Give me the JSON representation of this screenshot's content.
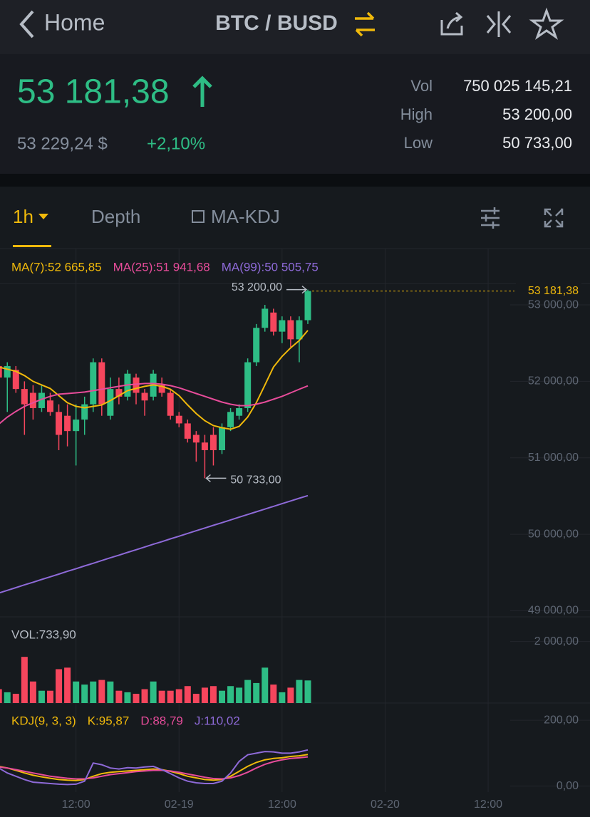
{
  "header": {
    "back": "Home",
    "pair": "BTC / BUSD"
  },
  "ticker": {
    "price": "53 181,38",
    "fiat": "53 229,24 $",
    "change": "+2,10%",
    "stats": [
      {
        "label": "Vol",
        "value": "750 025 145,21"
      },
      {
        "label": "High",
        "value": "53 200,00"
      },
      {
        "label": "Low",
        "value": "50 733,00"
      }
    ]
  },
  "tabs": [
    "1h",
    "Depth",
    "MA-KDJ"
  ],
  "chart_data": [
    {
      "type": "candlestick",
      "up_color": "#2ebd85",
      "down_color": "#f6465d",
      "open": [
        52300,
        52200,
        52050,
        52150,
        51900,
        51850,
        51650,
        51750,
        51600,
        51550,
        51350,
        51500,
        51700,
        52250,
        51550,
        51900,
        51800,
        52050,
        51850,
        51800,
        51950,
        51850,
        51550,
        51450,
        51300,
        51200,
        51300,
        51100,
        51400,
        51550,
        51650,
        52250,
        52700,
        52900,
        52650,
        52800,
        52550,
        52800
      ],
      "high": [
        52400,
        52300,
        52250,
        52200,
        52000,
        51950,
        51950,
        51850,
        51700,
        51700,
        51700,
        51800,
        52300,
        52300,
        52050,
        52050,
        52150,
        52100,
        51900,
        52150,
        52050,
        51900,
        51600,
        51500,
        51350,
        51300,
        51400,
        51450,
        51650,
        51700,
        52300,
        52750,
        53000,
        52950,
        52850,
        52850,
        52850,
        53200
      ],
      "low": [
        52000,
        51850,
        51600,
        51850,
        51300,
        51500,
        51600,
        51550,
        51100,
        51150,
        50900,
        51300,
        51600,
        51550,
        51500,
        51700,
        51750,
        51700,
        51550,
        51750,
        51800,
        51500,
        51400,
        51200,
        50950,
        50733,
        50900,
        51050,
        51350,
        51500,
        51600,
        52200,
        52650,
        52600,
        52500,
        52450,
        52250,
        52750
      ],
      "close": [
        52150,
        52050,
        52200,
        51900,
        51700,
        51650,
        51850,
        51600,
        51300,
        51350,
        51500,
        51700,
        52250,
        51700,
        51900,
        51800,
        52100,
        51850,
        51750,
        52100,
        51850,
        51550,
        51450,
        51250,
        51200,
        51100,
        51100,
        51400,
        51600,
        51650,
        52250,
        52700,
        52950,
        52650,
        52800,
        52550,
        52800,
        53181.38
      ],
      "series": [
        {
          "name": "MA(7):52 665,85",
          "color": "#f0b90b",
          "values": [
            52215,
            52187,
            52159,
            52131,
            52075,
            52000,
            51953,
            51907,
            51813,
            51720,
            51673,
            51654,
            51673,
            51692,
            51748,
            51813,
            51879,
            51907,
            51935,
            51953,
            51935,
            51897,
            51813,
            51692,
            51579,
            51486,
            51421,
            51393,
            51374,
            51411,
            51533,
            51720,
            51953,
            52187,
            52327,
            52439,
            52533,
            52665.85
          ]
        },
        {
          "name": "MA(25):51 941,68",
          "color": "#e74c9a",
          "values": [
            51346,
            51439,
            51533,
            51607,
            51673,
            51720,
            51766,
            51804,
            51832,
            51841,
            51850,
            51860,
            51879,
            51897,
            51916,
            51935,
            51953,
            51963,
            51972,
            51972,
            51963,
            51944,
            51916,
            51879,
            51841,
            51804,
            51766,
            51729,
            51701,
            51682,
            51682,
            51701,
            51729,
            51766,
            51804,
            51850,
            51897,
            51941.68
          ]
        },
        {
          "name": "MA(99):50 505,75",
          "color": "#8e6ad8",
          "values": [
            49196,
            49231,
            49267,
            49302,
            49338,
            49373,
            49409,
            49444,
            49479,
            49515,
            49550,
            49586,
            49621,
            49657,
            49692,
            49727,
            49763,
            49798,
            49834,
            49869,
            49904,
            49940,
            49975,
            50011,
            50046,
            50082,
            50117,
            50152,
            50188,
            50223,
            50259,
            50294,
            50330,
            50365,
            50400,
            50436,
            50471,
            50505.75
          ]
        }
      ],
      "ylim": [
        48920,
        53280
      ],
      "yticks": [
        {
          "value": 49000,
          "label": "49 000,00"
        },
        {
          "value": 50000,
          "label": "50 000,00"
        },
        {
          "value": 51000,
          "label": "51 000,00"
        },
        {
          "value": 52000,
          "label": "52 000,00"
        },
        {
          "value": 53000,
          "label": "53 000,00"
        }
      ],
      "last": {
        "value": 53181.38,
        "label": "53 181,38"
      },
      "high_mark": {
        "value": 53200,
        "label": "53 200,00"
      },
      "low_mark": {
        "value": 50733,
        "label": "50 733,00"
      },
      "xticks": [
        {
          "value": 10,
          "label": "12:00"
        },
        {
          "value": 22,
          "label": "02-19"
        },
        {
          "value": 34,
          "label": "12:00"
        },
        {
          "value": 46,
          "label": "02-20"
        },
        {
          "value": 58,
          "label": "12:00"
        }
      ]
    },
    {
      "type": "bar",
      "title": "VOL:733,90",
      "values": [
        400,
        450,
        350,
        300,
        1500,
        700,
        400,
        400,
        1100,
        1150,
        700,
        600,
        700,
        750,
        700,
        400,
        350,
        300,
        450,
        700,
        400,
        400,
        450,
        550,
        300,
        500,
        550,
        400,
        550,
        500,
        750,
        650,
        1150,
        600,
        350,
        500,
        750,
        733.9
      ],
      "ylim": [
        0,
        2800
      ],
      "yticks": [
        {
          "value": 2000,
          "label": "2 000,00"
        }
      ]
    },
    {
      "type": "line",
      "title": "KDJ(9, 3, 3)",
      "series": [
        {
          "name": "K:95,87",
          "color": "#f0b90b",
          "values": [
            65,
            60,
            55,
            48,
            40,
            33,
            28,
            24,
            20,
            18,
            17,
            20,
            30,
            38,
            42,
            44,
            46,
            48,
            50,
            52,
            50,
            45,
            38,
            30,
            25,
            20,
            18,
            20,
            30,
            45,
            60,
            72,
            80,
            84,
            86,
            90,
            92,
            95.87
          ]
        },
        {
          "name": "D:88,79",
          "color": "#e74c9a",
          "values": [
            60,
            58,
            55,
            50,
            45,
            40,
            35,
            30,
            27,
            24,
            22,
            22,
            25,
            30,
            35,
            38,
            41,
            44,
            46,
            48,
            48,
            46,
            42,
            37,
            32,
            27,
            23,
            22,
            25,
            32,
            42,
            55,
            66,
            74,
            80,
            84,
            86,
            88.79
          ]
        },
        {
          "name": "J:110,02",
          "color": "#8e6ad8",
          "values": [
            75,
            55,
            40,
            30,
            20,
            12,
            10,
            8,
            6,
            5,
            6,
            15,
            70,
            65,
            55,
            52,
            56,
            55,
            58,
            60,
            50,
            38,
            25,
            15,
            10,
            8,
            8,
            15,
            40,
            75,
            95,
            100,
            105,
            104,
            100,
            100,
            104,
            110.02
          ]
        }
      ],
      "ylim": [
        -18,
        250
      ],
      "yticks": [
        {
          "value": 0,
          "label": "0,00"
        },
        {
          "value": 200,
          "label": "200,00"
        }
      ]
    }
  ]
}
